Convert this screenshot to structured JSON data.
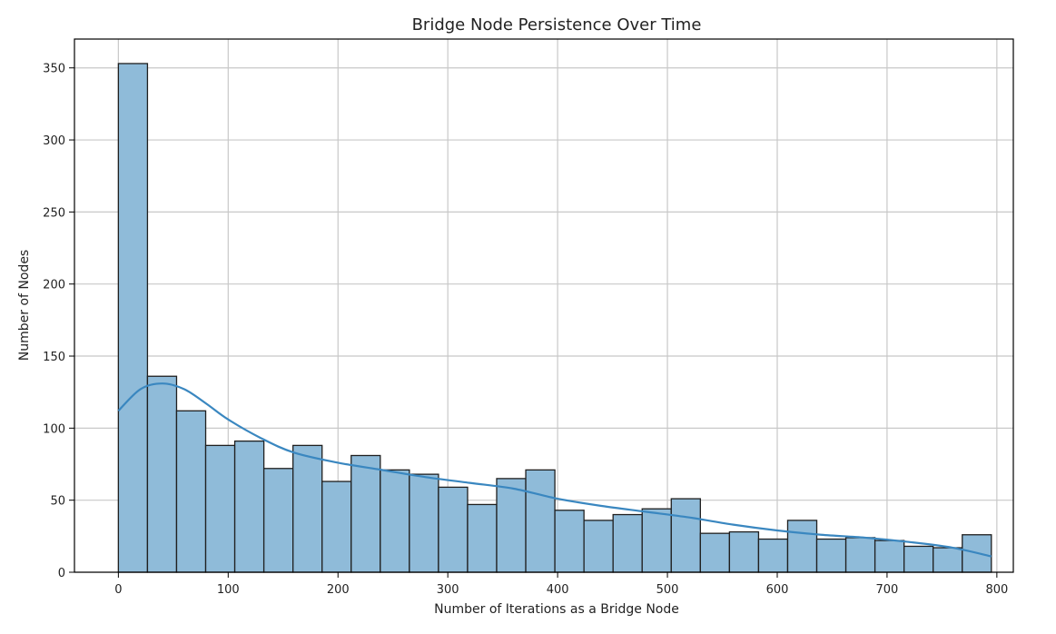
{
  "chart_data": {
    "type": "bar",
    "title": "Bridge Node Persistence Over Time",
    "xlabel": "Number of Iterations as a Bridge Node",
    "ylabel": "Number of Nodes",
    "xlim": [
      -40,
      815
    ],
    "ylim": [
      0,
      370
    ],
    "xticks": [
      0,
      100,
      200,
      300,
      400,
      500,
      600,
      700,
      800
    ],
    "yticks": [
      0,
      50,
      100,
      150,
      200,
      250,
      300,
      350
    ],
    "grid": true,
    "bin_edges": [
      0,
      26.5,
      53,
      79.5,
      106,
      132.5,
      159,
      185.5,
      212,
      238.5,
      265,
      291.5,
      318,
      344.5,
      371,
      397.5,
      424,
      450.5,
      477,
      503.5,
      530,
      556.5,
      583,
      609.5,
      636,
      662.5,
      689,
      715.5,
      742,
      768.5,
      795
    ],
    "values": [
      353,
      136,
      112,
      88,
      91,
      72,
      88,
      63,
      81,
      71,
      68,
      59,
      47,
      65,
      71,
      43,
      36,
      40,
      44,
      51,
      27,
      28,
      23,
      36,
      23,
      24,
      22,
      18,
      17,
      26
    ],
    "kde": {
      "x": [
        0,
        20,
        40,
        60,
        80,
        100,
        130,
        160,
        200,
        240,
        280,
        320,
        360,
        400,
        440,
        480,
        520,
        560,
        600,
        640,
        680,
        720,
        760,
        795
      ],
      "y": [
        112,
        127,
        131,
        127,
        117,
        106,
        93,
        83,
        76,
        71,
        66,
        62,
        58,
        51,
        46,
        42,
        38,
        33,
        29,
        26,
        24,
        21,
        17,
        11
      ]
    },
    "colors": {
      "bar_fill": "#8fbbd9",
      "bar_edge": "#1f1f1f",
      "kde_line": "#3a87c0",
      "grid": "#c8c8c8"
    }
  }
}
